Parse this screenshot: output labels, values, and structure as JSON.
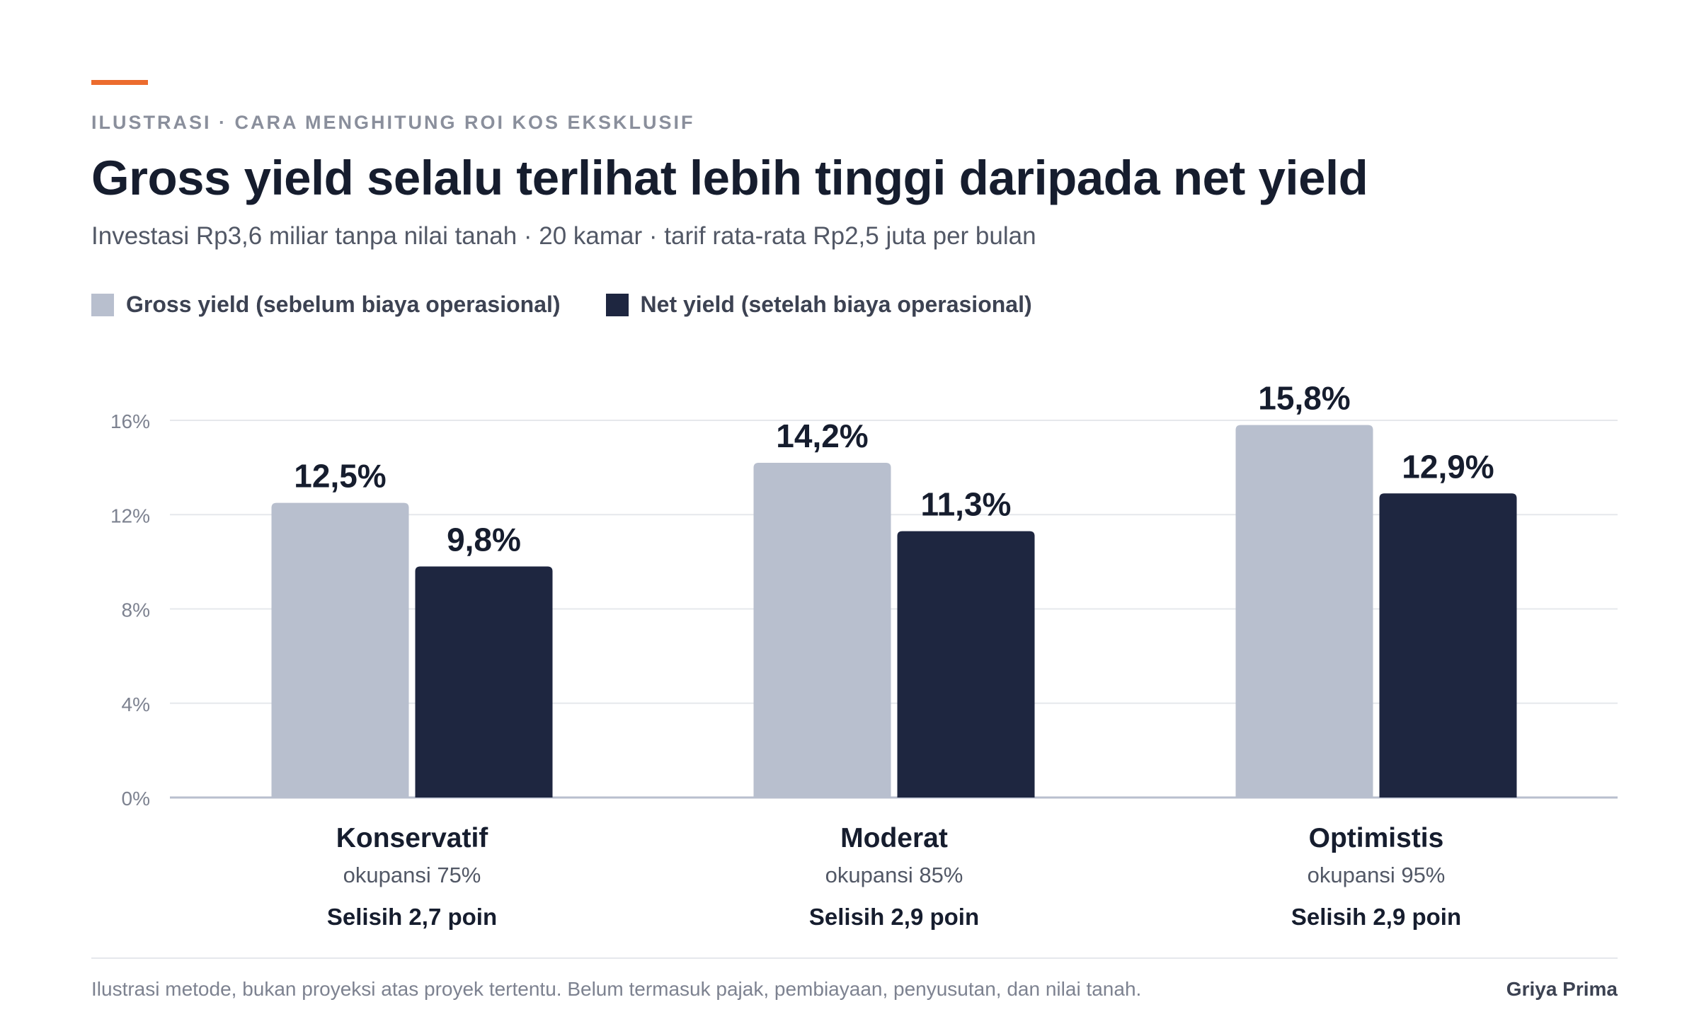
{
  "eyebrow": "ILUSTRASI · CARA MENGHITUNG ROI KOS EKSKLUSIF",
  "title": "Gross yield selalu terlihat lebih tinggi daripada net yield",
  "subtitle": "Investasi Rp3,6 miliar tanpa nilai tanah · 20 kamar · tarif rata-rata Rp2,5 juta per bulan",
  "colors": {
    "accent": "#ec6c2e",
    "gross": "#b8bfce",
    "net": "#1e2640"
  },
  "chart_data": {
    "type": "bar",
    "categories": [
      "Konservatif",
      "Moderat",
      "Optimistis"
    ],
    "category_subtitles": [
      "okupansi 75%",
      "okupansi 85%",
      "okupansi 95%"
    ],
    "category_notes": [
      "Selisih 2,7 poin",
      "Selisih 2,9 poin",
      "Selisih 2,9 poin"
    ],
    "series": [
      {
        "name": "Gross yield (sebelum biaya operasional)",
        "values": [
          12.5,
          14.2,
          15.8
        ],
        "labels": [
          "12,5%",
          "14,2%",
          "15,8%"
        ],
        "color": "#b8bfce"
      },
      {
        "name": "Net yield (setelah biaya operasional)",
        "values": [
          9.8,
          11.3,
          12.9
        ],
        "labels": [
          "9,8%",
          "11,3%",
          "12,9%"
        ],
        "color": "#1e2640"
      }
    ],
    "ylim": [
      0,
      16
    ],
    "yticks": [
      0,
      4,
      8,
      12,
      16
    ],
    "ytick_labels": [
      "0%",
      "4%",
      "8%",
      "12%",
      "16%"
    ],
    "grid": true,
    "legend_position": "top-left"
  },
  "footer": {
    "note": "Ilustrasi metode, bukan proyeksi atas proyek tertentu. Belum termasuk pajak, pembiayaan, penyusutan, dan nilai tanah.",
    "brand": "Griya Prima"
  }
}
